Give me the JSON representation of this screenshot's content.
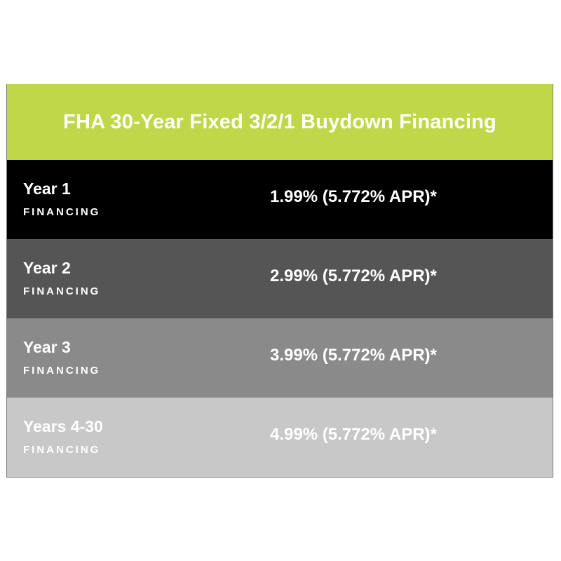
{
  "title": "FHA 30-Year Fixed 3/2/1 Buydown Financing",
  "colors": {
    "header_bg": "#c0d749",
    "row_backgrounds": [
      "#000000",
      "#555555",
      "#8a8a8a",
      "#c8c8c8"
    ]
  },
  "rows": [
    {
      "term": "Year 1",
      "label": "FINANCING",
      "rate": "1.99% (5.772% APR)*"
    },
    {
      "term": "Year 2",
      "label": "FINANCING",
      "rate": "2.99% (5.772% APR)*"
    },
    {
      "term": "Year 3",
      "label": "FINANCING",
      "rate": "3.99% (5.772% APR)*"
    },
    {
      "term": "Years 4-30",
      "label": "FINANCING",
      "rate": "4.99% (5.772% APR)*"
    }
  ]
}
